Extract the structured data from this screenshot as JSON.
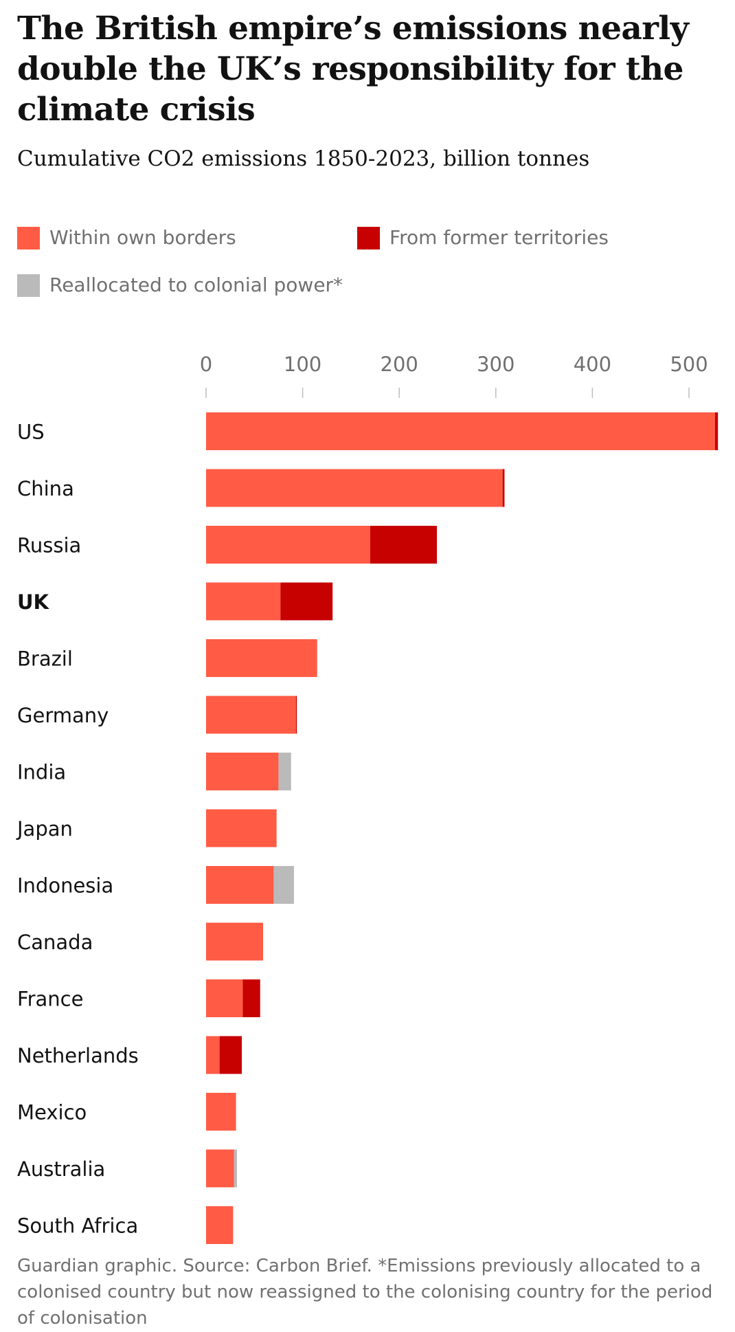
{
  "title": "The British empire’s emissions nearly double the UK’s responsibility for the climate crisis",
  "subtitle": "Cumulative CO2 emissions 1850-2023, billion tonnes",
  "legend": [
    {
      "label": "Within own borders",
      "color": "#ff5b45"
    },
    {
      "label": "From former territories",
      "color": "#c70000"
    },
    {
      "label": "Reallocated to colonial power*",
      "color": "#bababa"
    }
  ],
  "footer": "Guardian graphic. Source: Carbon Brief. *Emissions previously allocated to a colonised country but now reassigned to the colonising country for the period of colonisation",
  "chart_data": {
    "type": "bar",
    "orientation": "horizontal",
    "stacked": true,
    "xlim": [
      0,
      530
    ],
    "ticks": [
      0,
      100,
      200,
      300,
      400,
      500
    ],
    "categories": [
      "US",
      "China",
      "Russia",
      "UK",
      "Brazil",
      "Germany",
      "India",
      "Japan",
      "Indonesia",
      "Canada",
      "France",
      "Netherlands",
      "Mexico",
      "Australia",
      "South Africa"
    ],
    "highlight": "UK",
    "series": [
      {
        "name": "Within own borders",
        "color": "#ff5b45",
        "values": [
          527,
          307,
          170,
          77,
          115,
          93,
          75,
          73,
          70,
          59,
          38,
          14,
          31,
          29,
          28
        ]
      },
      {
        "name": "From former territories",
        "color": "#c70000",
        "values": [
          3,
          2,
          69,
          54,
          0,
          1,
          0,
          0,
          0,
          0,
          18,
          23,
          0,
          0,
          0
        ]
      },
      {
        "name": "Reallocated to colonial power*",
        "color": "#bababa",
        "values": [
          0,
          0,
          0,
          0,
          0,
          0,
          13,
          0,
          21,
          0,
          0,
          0,
          0,
          3,
          0
        ]
      }
    ]
  }
}
